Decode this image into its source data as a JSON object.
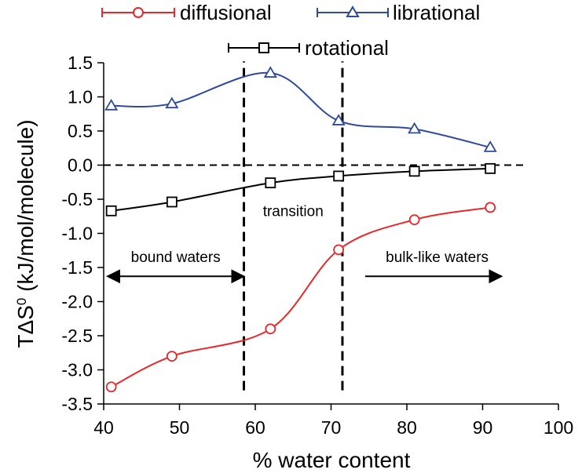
{
  "chart_data": {
    "type": "line",
    "xlabel": "% water content",
    "ylabel_main": "TΔS",
    "ylabel_sup": "0",
    "ylabel_unit": " (kJ/mol/molecule)",
    "xlim": [
      40,
      100
    ],
    "ylim": [
      -3.5,
      1.5
    ],
    "x_ticks": [
      40,
      50,
      60,
      70,
      80,
      90,
      100
    ],
    "x_tick_labels": [
      "40",
      "50",
      "60",
      "70",
      "80",
      "90",
      "100"
    ],
    "y_ticks": [
      1.5,
      1.0,
      0.5,
      0.0,
      -0.5,
      -1.0,
      -1.5,
      -2.0,
      -2.5,
      -3.0,
      -3.5
    ],
    "y_tick_labels": [
      "1.5",
      "1.0",
      "0.5",
      "0.0",
      "-0.5",
      "-1.0",
      "-1.5",
      "-2.0",
      "-2.5",
      "-3.0",
      "-3.5"
    ],
    "series": [
      {
        "name": "diffusional",
        "color": "#e8282b",
        "marker": "circle",
        "x": [
          41,
          49,
          62,
          71,
          81,
          91
        ],
        "y": [
          -3.25,
          -2.8,
          -2.4,
          -1.24,
          -0.8,
          -0.62
        ]
      },
      {
        "name": "librational",
        "color": "#2e4a9c",
        "marker": "triangle",
        "x": [
          41,
          49,
          62,
          71,
          81,
          91
        ],
        "y": [
          0.87,
          0.9,
          1.35,
          0.65,
          0.53,
          0.26
        ]
      },
      {
        "name": "rotational",
        "color": "#000000",
        "marker": "square",
        "x": [
          41,
          49,
          62,
          71,
          81,
          91
        ],
        "y": [
          -0.67,
          -0.54,
          -0.26,
          -0.16,
          -0.09,
          -0.05
        ]
      }
    ],
    "reference_lines": {
      "zero_line_y": 0.0,
      "vertical_x": [
        58.5,
        71.5
      ]
    },
    "annotations": {
      "transition": "transition",
      "bound": "bound waters",
      "bulk": "bulk-like waters"
    },
    "annotation_positions": {
      "transition": {
        "x": 65,
        "y": -0.68
      },
      "bound": {
        "x": 49.5,
        "y": -1.35
      },
      "bulk": {
        "x": 84,
        "y": -1.35
      },
      "bound_arrow": {
        "x1": 40.5,
        "x2": 58.5,
        "y": -1.63
      },
      "bulk_arrow": {
        "x1": 74.5,
        "x2": 92.5,
        "y": -1.63
      }
    }
  }
}
